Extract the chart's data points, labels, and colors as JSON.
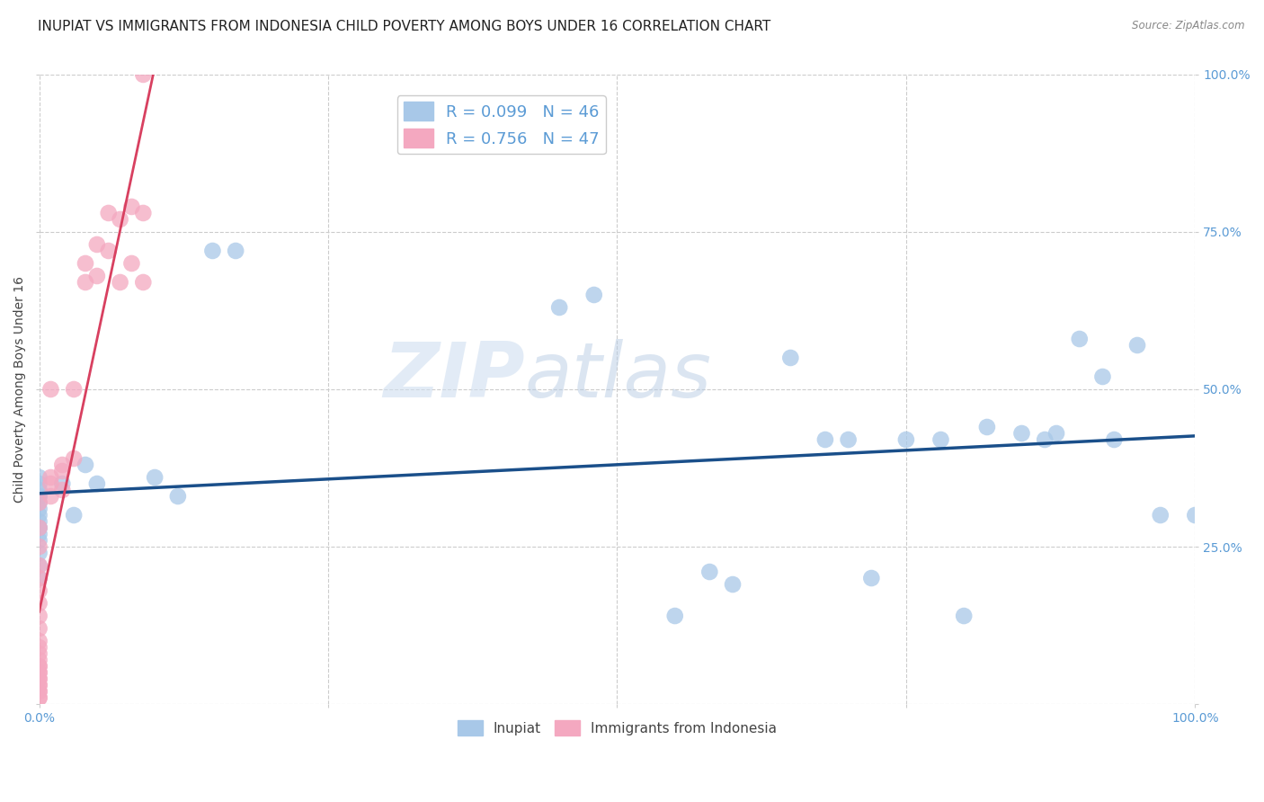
{
  "title": "INUPIAT VS IMMIGRANTS FROM INDONESIA CHILD POVERTY AMONG BOYS UNDER 16 CORRELATION CHART",
  "source": "Source: ZipAtlas.com",
  "ylabel": "Child Poverty Among Boys Under 16",
  "watermark": "ZIPatlas",
  "bottom_legend": [
    "Inupiat",
    "Immigrants from Indonesia"
  ],
  "blue_color": "#a8c8e8",
  "pink_color": "#f4a8c0",
  "blue_line_color": "#1a4f8a",
  "pink_line_color": "#d84060",
  "inupiat_x": [
    0.0,
    0.0,
    0.0,
    0.0,
    0.0,
    0.0,
    0.0,
    0.0,
    0.0,
    0.0,
    0.0,
    0.0,
    0.0,
    0.0,
    0.0,
    0.0,
    0.02,
    0.03,
    0.04,
    0.05,
    0.1,
    0.12,
    0.15,
    0.17,
    0.45,
    0.48,
    0.55,
    0.58,
    0.6,
    0.65,
    0.68,
    0.7,
    0.72,
    0.75,
    0.78,
    0.8,
    0.82,
    0.85,
    0.87,
    0.88,
    0.9,
    0.92,
    0.93,
    0.95,
    0.97,
    1.0
  ],
  "inupiat_y": [
    0.2,
    0.22,
    0.24,
    0.26,
    0.27,
    0.28,
    0.28,
    0.29,
    0.3,
    0.31,
    0.32,
    0.33,
    0.33,
    0.34,
    0.35,
    0.36,
    0.35,
    0.3,
    0.38,
    0.35,
    0.36,
    0.33,
    0.72,
    0.72,
    0.63,
    0.65,
    0.14,
    0.21,
    0.19,
    0.55,
    0.42,
    0.42,
    0.2,
    0.42,
    0.42,
    0.14,
    0.44,
    0.43,
    0.42,
    0.43,
    0.58,
    0.52,
    0.42,
    0.57,
    0.3,
    0.3
  ],
  "indonesia_x": [
    0.0,
    0.0,
    0.0,
    0.0,
    0.0,
    0.0,
    0.0,
    0.0,
    0.0,
    0.0,
    0.0,
    0.0,
    0.0,
    0.0,
    0.0,
    0.0,
    0.0,
    0.0,
    0.0,
    0.0,
    0.0,
    0.0,
    0.0,
    0.0,
    0.0,
    0.01,
    0.01,
    0.01,
    0.01,
    0.02,
    0.02,
    0.02,
    0.03,
    0.03,
    0.04,
    0.04,
    0.05,
    0.05,
    0.06,
    0.06,
    0.07,
    0.07,
    0.08,
    0.08,
    0.09,
    0.09,
    0.09
  ],
  "indonesia_y": [
    0.01,
    0.01,
    0.02,
    0.02,
    0.03,
    0.03,
    0.04,
    0.04,
    0.05,
    0.05,
    0.06,
    0.06,
    0.07,
    0.08,
    0.09,
    0.1,
    0.12,
    0.14,
    0.16,
    0.18,
    0.2,
    0.22,
    0.25,
    0.28,
    0.32,
    0.33,
    0.35,
    0.36,
    0.5,
    0.34,
    0.37,
    0.38,
    0.39,
    0.5,
    0.67,
    0.7,
    0.68,
    0.73,
    0.72,
    0.78,
    0.67,
    0.77,
    0.7,
    0.79,
    0.67,
    0.78,
    1.0
  ],
  "xlim": [
    0.0,
    1.0
  ],
  "ylim": [
    0.0,
    1.0
  ],
  "xticks": [
    0.0,
    0.25,
    0.5,
    0.75,
    1.0
  ],
  "yticks": [
    0.0,
    0.25,
    0.5,
    0.75,
    1.0
  ],
  "xticklabels": [
    "0.0%",
    "",
    "",
    "",
    "100.0%"
  ],
  "yticklabels_right": [
    "",
    "25.0%",
    "50.0%",
    "75.0%",
    "100.0%"
  ],
  "grid_color": "#cccccc",
  "background_color": "#ffffff",
  "title_fontsize": 11,
  "axis_label_fontsize": 10,
  "tick_fontsize": 10,
  "tick_color": "#5b9bd5",
  "R_inupiat": 0.099,
  "N_inupiat": 46,
  "R_indonesia": 0.756,
  "N_indonesia": 47
}
